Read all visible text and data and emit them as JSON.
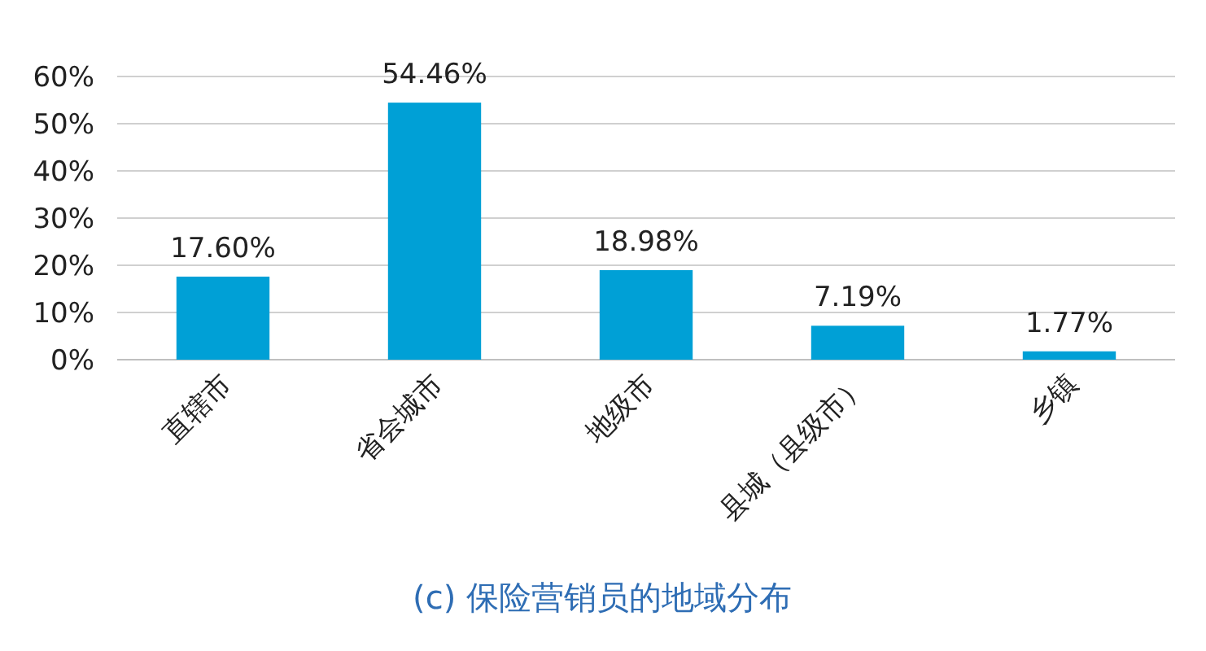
{
  "chart_data": {
    "type": "bar",
    "title": "(c)    保险营销员的地域分布",
    "categories": [
      "直辖市",
      "省会城市",
      "地级市",
      "县城（县级市）",
      "乡镇"
    ],
    "values": [
      17.6,
      54.46,
      18.98,
      7.19,
      1.77
    ],
    "value_labels": [
      "17.60%",
      "54.46%",
      "18.98%",
      "7.19%",
      "1.77%"
    ],
    "color": "#00a0d6",
    "ylim": [
      0,
      60
    ],
    "yticks": [
      {
        "value": 0,
        "label": "0%"
      },
      {
        "value": 10,
        "label": "10%"
      },
      {
        "value": 20,
        "label": "20%"
      },
      {
        "value": 30,
        "label": "30%"
      },
      {
        "value": 40,
        "label": "40%"
      },
      {
        "value": 50,
        "label": "50%"
      },
      {
        "value": 60,
        "label": "60%"
      }
    ],
    "grid": "y"
  }
}
